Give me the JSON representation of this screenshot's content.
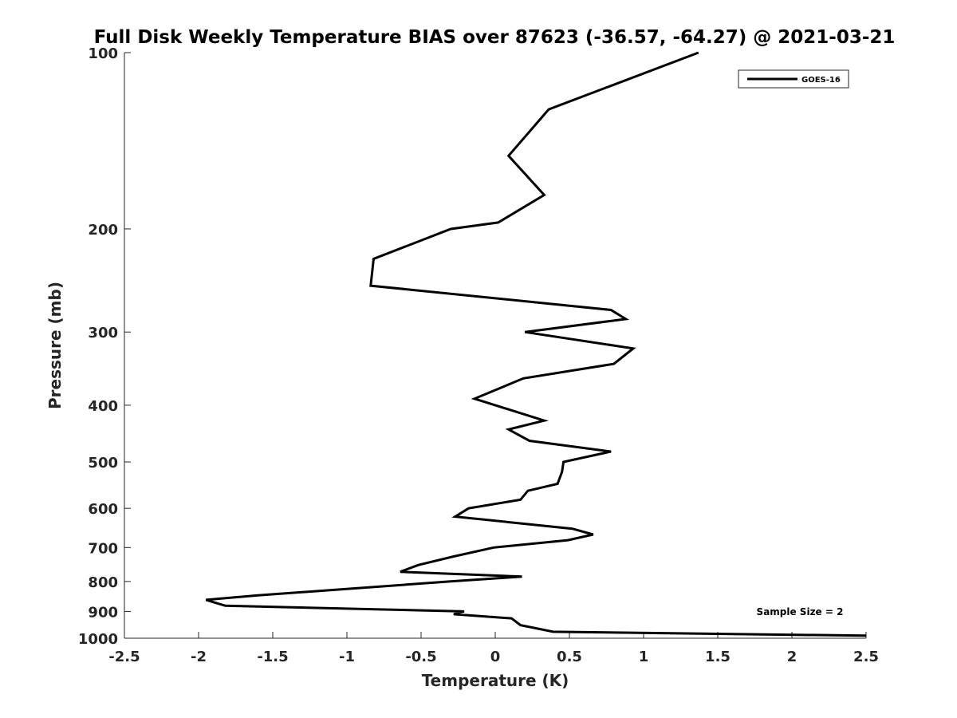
{
  "chart_data": {
    "type": "line",
    "title": "Full Disk Weekly Temperature BIAS over 87623 (-36.57, -64.27) @ 2021-03-21",
    "xlabel": "Temperature (K)",
    "ylabel": "Pressure (mb)",
    "xlim": [
      -2.5,
      2.5
    ],
    "ylim": [
      1000,
      100
    ],
    "y_scale": "log",
    "y_reversed": true,
    "x_ticks": [
      "-2.5",
      "-2",
      "-1.5",
      "-1",
      "-0.5",
      "0",
      "0.5",
      "1",
      "1.5",
      "2",
      "2.5"
    ],
    "x_tick_values": [
      -2.5,
      -2,
      -1.5,
      -1,
      -0.5,
      0,
      0.5,
      1,
      1.5,
      2,
      2.5
    ],
    "y_ticks": [
      "100",
      "200",
      "300",
      "400",
      "500",
      "600",
      "700",
      "800",
      "900",
      "1000"
    ],
    "y_tick_values": [
      100,
      200,
      300,
      400,
      500,
      600,
      700,
      800,
      900,
      1000
    ],
    "grid": false,
    "legend_position": "top-right",
    "annotation": "Sample Size = 2",
    "series": [
      {
        "name": "GOES-16",
        "color": "#000000",
        "points": [
          [
            1.37,
            100
          ],
          [
            0.36,
            125
          ],
          [
            0.09,
            150
          ],
          [
            0.33,
            175
          ],
          [
            0.02,
            195
          ],
          [
            -0.3,
            200
          ],
          [
            -0.82,
            225
          ],
          [
            -0.84,
            250
          ],
          [
            0.78,
            275
          ],
          [
            0.88,
            285
          ],
          [
            0.2,
            300
          ],
          [
            0.93,
            320
          ],
          [
            0.8,
            340
          ],
          [
            0.19,
            360
          ],
          [
            -0.14,
            390
          ],
          [
            0.33,
            425
          ],
          [
            0.09,
            440
          ],
          [
            0.23,
            460
          ],
          [
            0.78,
            480
          ],
          [
            0.46,
            500
          ],
          [
            0.45,
            520
          ],
          [
            0.42,
            545
          ],
          [
            0.22,
            560
          ],
          [
            0.17,
            580
          ],
          [
            -0.18,
            600
          ],
          [
            -0.27,
            620
          ],
          [
            0.52,
            650
          ],
          [
            0.66,
            665
          ],
          [
            0.49,
            680
          ],
          [
            -0.01,
            700
          ],
          [
            -0.28,
            725
          ],
          [
            -0.52,
            750
          ],
          [
            -0.64,
            770
          ],
          [
            0.18,
            785
          ],
          [
            -0.31,
            800
          ],
          [
            -1.6,
            845
          ],
          [
            -1.95,
            860
          ],
          [
            -1.82,
            880
          ],
          [
            -0.21,
            900
          ],
          [
            -0.28,
            910
          ],
          [
            0.11,
            925
          ],
          [
            0.17,
            950
          ],
          [
            0.39,
            975
          ],
          [
            2.5,
            990
          ]
        ]
      }
    ]
  }
}
